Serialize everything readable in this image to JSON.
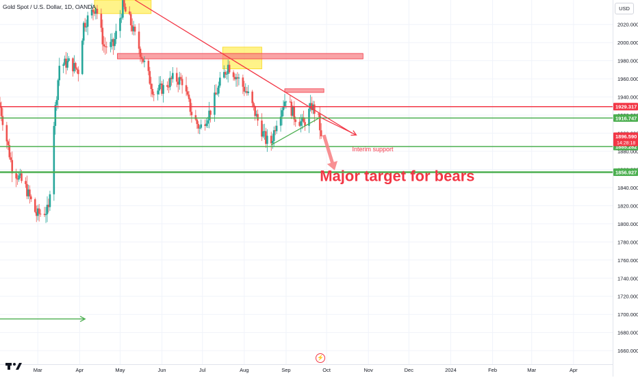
{
  "header": {
    "symbol_title": "Gold Spot / U.S. Dollar, 1D, OANDA",
    "currency": "USD"
  },
  "colors": {
    "up": "#26a69a",
    "down": "#ef5350",
    "red_line": "#f23645",
    "green_line": "#4caf50",
    "yellow_zone": "#ffeb3b",
    "pink_zone": "#f77c80",
    "axis_text": "#131722"
  },
  "chart_data": {
    "type": "candlestick",
    "title": "Gold Spot / U.S. Dollar, 1D, OANDA",
    "ylim": [
      1645,
      2047
    ],
    "y_ticks": [
      1660,
      1680,
      1700,
      1720,
      1740,
      1760,
      1780,
      1800,
      1820,
      1840,
      1860,
      1880,
      1900,
      1920,
      1940,
      1960,
      1980,
      2000,
      2020
    ],
    "x_ticks": [
      "Mar",
      "Apr",
      "May",
      "Jun",
      "Jul",
      "Aug",
      "Sep",
      "Oct",
      "Nov",
      "Dec",
      "2024",
      "Feb",
      "Mar",
      "Apr"
    ],
    "date_range": [
      "2023-02-01",
      "2024-04-30"
    ],
    "price_series": [
      {
        "date": "2023-02-01",
        "close": 1930
      },
      {
        "date": "2023-02-10",
        "close": 1862
      },
      {
        "date": "2023-02-20",
        "close": 1840
      },
      {
        "date": "2023-02-28",
        "close": 1810
      },
      {
        "date": "2023-03-09",
        "close": 1815
      },
      {
        "date": "2023-03-13",
        "close": 1912
      },
      {
        "date": "2023-03-17",
        "close": 1975
      },
      {
        "date": "2023-03-24",
        "close": 1978
      },
      {
        "date": "2023-03-31",
        "close": 1969
      },
      {
        "date": "2023-04-04",
        "close": 2020
      },
      {
        "date": "2023-04-13",
        "close": 2040
      },
      {
        "date": "2023-04-19",
        "close": 1996
      },
      {
        "date": "2023-04-26",
        "close": 1997
      },
      {
        "date": "2023-05-03",
        "close": 2040
      },
      {
        "date": "2023-05-08",
        "close": 2025
      },
      {
        "date": "2023-05-16",
        "close": 1990
      },
      {
        "date": "2023-05-26",
        "close": 1945
      },
      {
        "date": "2023-06-02",
        "close": 1950
      },
      {
        "date": "2023-06-09",
        "close": 1960
      },
      {
        "date": "2023-06-16",
        "close": 1958
      },
      {
        "date": "2023-06-23",
        "close": 1922
      },
      {
        "date": "2023-06-29",
        "close": 1905
      },
      {
        "date": "2023-07-07",
        "close": 1925
      },
      {
        "date": "2023-07-14",
        "close": 1955
      },
      {
        "date": "2023-07-20",
        "close": 1975
      },
      {
        "date": "2023-07-28",
        "close": 1959
      },
      {
        "date": "2023-08-04",
        "close": 1942
      },
      {
        "date": "2023-08-11",
        "close": 1914
      },
      {
        "date": "2023-08-17",
        "close": 1892
      },
      {
        "date": "2023-08-21",
        "close": 1890
      },
      {
        "date": "2023-08-25",
        "close": 1914
      },
      {
        "date": "2023-09-01",
        "close": 1940
      },
      {
        "date": "2023-09-07",
        "close": 1919
      },
      {
        "date": "2023-09-14",
        "close": 1910
      },
      {
        "date": "2023-09-20",
        "close": 1930
      },
      {
        "date": "2023-09-22",
        "close": 1925
      },
      {
        "date": "2023-09-25",
        "close": 1915
      },
      {
        "date": "2023-09-27",
        "close": 1896.59
      }
    ],
    "horizontal_levels": [
      {
        "price": 1929.317,
        "label": "1929.317",
        "color": "red"
      },
      {
        "price": 1916.747,
        "label": "1916.747",
        "color": "green"
      },
      {
        "price": 1885.282,
        "label": "1885.282",
        "color": "green"
      },
      {
        "price": 1856.927,
        "label": "1856.927",
        "color": "green"
      }
    ],
    "current_price": {
      "price": 1896.59,
      "label": "1896.590",
      "countdown": "14:28:18"
    },
    "trendlines": [
      {
        "name": "descending-resistance",
        "from": {
          "date": "2023-05-12",
          "price": 2047
        },
        "to": {
          "date": "2023-10-20",
          "price": 1900
        },
        "color": "red"
      },
      {
        "name": "ascending-support",
        "from": {
          "date": "2023-08-21",
          "price": 1887
        },
        "to": {
          "date": "2023-09-27",
          "price": 1918
        },
        "color": "green"
      }
    ],
    "zones": [
      {
        "from": "2023-04-12",
        "to": "2023-05-24",
        "low": 2032,
        "high": 2047,
        "color": "yellow"
      },
      {
        "from": "2023-07-16",
        "to": "2023-08-14",
        "low": 1971,
        "high": 1995,
        "color": "yellow"
      },
      {
        "from": "2023-04-29",
        "to": "2023-10-28",
        "low": 1982,
        "high": 1988,
        "color": "pink"
      },
      {
        "from": "2023-08-31",
        "to": "2023-09-29",
        "low": 1945,
        "high": 1949,
        "color": "pink"
      }
    ],
    "arrows": [
      {
        "name": "projection-arrow",
        "from": {
          "date": "2023-09-27",
          "price": 1917
        },
        "to": {
          "date": "2023-10-23",
          "price": 1898
        },
        "color": "red"
      },
      {
        "name": "drop-arrow",
        "from": {
          "date": "2023-09-29",
          "price": 1898
        },
        "to": {
          "date": "2023-10-07",
          "price": 1859
        },
        "color": "pink"
      },
      {
        "name": "forward-arrow",
        "from": {
          "date": "2023-02-01",
          "price": 1695
        },
        "to": {
          "date": "2023-04-05",
          "price": 1695
        },
        "color": "green"
      }
    ],
    "annotations": [
      {
        "text": "Interim support",
        "date": "2023-10-20",
        "price": 1880,
        "color": "red"
      },
      {
        "text": "Major target for bears",
        "date": "2023-09-26",
        "price": 1847,
        "color": "red"
      }
    ]
  }
}
